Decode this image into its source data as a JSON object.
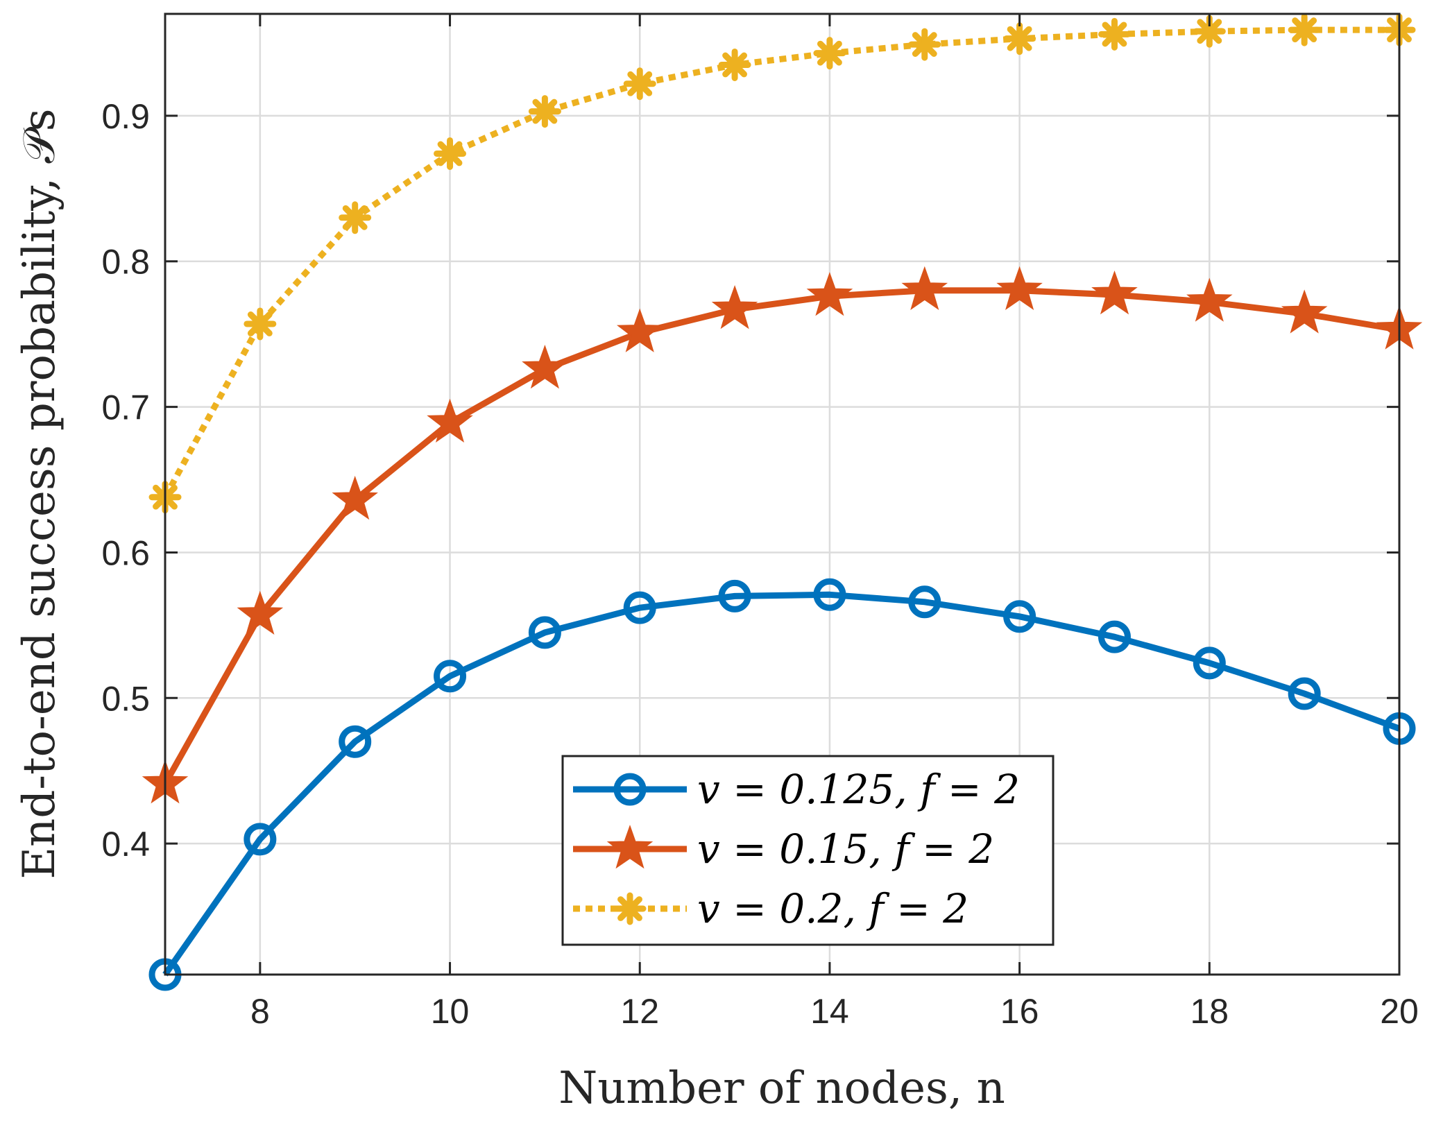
{
  "chart_data": {
    "type": "line",
    "title": "",
    "xlabel": "Number of nodes, n",
    "ylabel": "End-to-end success probability, 𝒫s",
    "xlim": [
      7,
      20
    ],
    "ylim": [
      0.31,
      0.97
    ],
    "xticks": [
      8,
      10,
      12,
      14,
      16,
      18,
      20
    ],
    "yticks": [
      0.4,
      0.5,
      0.6,
      0.7,
      0.8,
      0.9
    ],
    "xtick_labels": [
      "8",
      "10",
      "12",
      "14",
      "16",
      "18",
      "20"
    ],
    "ytick_labels": [
      "0.4",
      "0.5",
      "0.6",
      "0.7",
      "0.8",
      "0.9"
    ],
    "grid": true,
    "legend_position": "bottom-center",
    "x": [
      7,
      8,
      9,
      10,
      11,
      12,
      13,
      14,
      15,
      16,
      17,
      18,
      19,
      20
    ],
    "series": [
      {
        "name": "v = 0.125, f = 2",
        "color": "#0072BD",
        "marker": "circle",
        "line_style": "solid",
        "values": [
          0.31,
          0.403,
          0.47,
          0.515,
          0.545,
          0.562,
          0.57,
          0.571,
          0.566,
          0.556,
          0.542,
          0.524,
          0.503,
          0.479
        ]
      },
      {
        "name": "v = 0.15, f = 2",
        "color": "#D95319",
        "marker": "star",
        "line_style": "solid",
        "values": [
          0.441,
          0.557,
          0.636,
          0.689,
          0.726,
          0.751,
          0.767,
          0.776,
          0.78,
          0.78,
          0.777,
          0.772,
          0.764,
          0.753
        ]
      },
      {
        "name": "v = 0.2, f = 2",
        "color": "#EDB120",
        "marker": "asterisk",
        "line_style": "dotted",
        "values": [
          0.638,
          0.757,
          0.83,
          0.874,
          0.903,
          0.922,
          0.935,
          0.943,
          0.949,
          0.953,
          0.956,
          0.958,
          0.959,
          0.959
        ]
      }
    ]
  }
}
